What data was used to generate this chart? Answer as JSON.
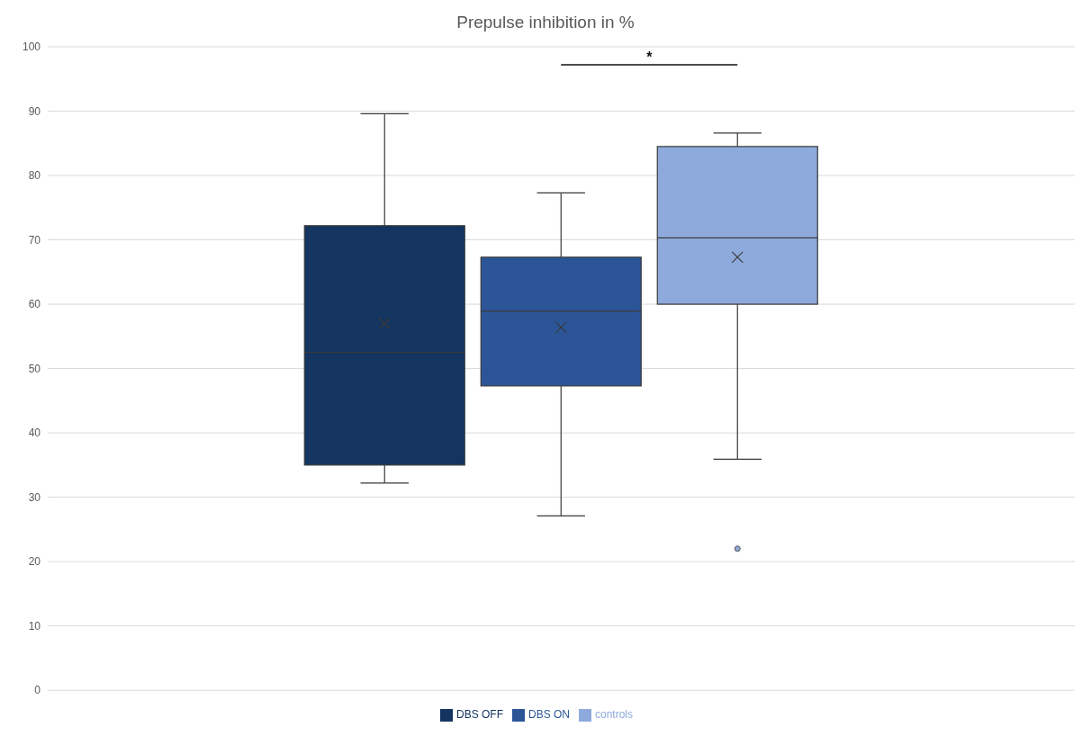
{
  "chart_data": {
    "type": "box",
    "title": "Prepulse inhibition in %",
    "categories": [
      null
    ],
    "series": [
      {
        "name": "DBS OFF",
        "color": "#133560",
        "boxes": [
          {
            "low": 32.2,
            "q1": 35,
            "median": 52.5,
            "q3": 72.2,
            "high": 89.6,
            "mean": 57
          }
        ]
      },
      {
        "name": "DBS ON",
        "color": "#2c5598",
        "boxes": [
          {
            "low": 27.1,
            "q1": 47.3,
            "median": 58.9,
            "q3": 67.3,
            "high": 77.3,
            "mean": 56.4
          }
        ]
      },
      {
        "name": "controls",
        "color": "#8eaadc",
        "boxes": [
          {
            "low": 35.9,
            "q1": 60,
            "median": 70.3,
            "q3": 84.5,
            "high": 86.6,
            "mean": 67.3,
            "outliers": [
              22
            ]
          }
        ]
      }
    ],
    "ylim": [
      0,
      100
    ],
    "yticks": [
      0,
      10,
      20,
      30,
      40,
      50,
      60,
      70,
      80,
      90,
      100
    ],
    "grid": "y",
    "legend": "bottom",
    "marker": "cross",
    "tick_labels": "y",
    "annotations": [
      "*"
    ]
  }
}
